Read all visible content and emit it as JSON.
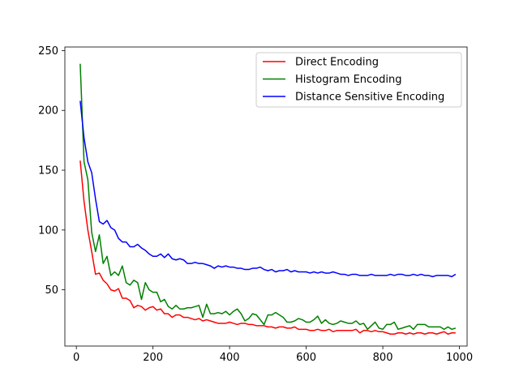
{
  "chart_data": {
    "type": "line",
    "title": "",
    "xlabel": "",
    "ylabel": "",
    "xlim": [
      -30,
      1020
    ],
    "ylim": [
      3,
      253
    ],
    "xticks": [
      0,
      200,
      400,
      600,
      800,
      1000
    ],
    "yticks": [
      50,
      100,
      150,
      200,
      250
    ],
    "xtick_labels": [
      "0",
      "200",
      "400",
      "600",
      "800",
      "1000"
    ],
    "ytick_labels": [
      "50",
      "100",
      "150",
      "200",
      "250"
    ],
    "grid": false,
    "legend_position": "top-right",
    "x": [
      10,
      20,
      30,
      40,
      50,
      60,
      70,
      80,
      90,
      100,
      110,
      120,
      130,
      140,
      150,
      160,
      170,
      180,
      190,
      200,
      210,
      220,
      230,
      240,
      250,
      260,
      270,
      280,
      290,
      300,
      310,
      320,
      330,
      340,
      350,
      360,
      370,
      380,
      390,
      400,
      410,
      420,
      430,
      440,
      450,
      460,
      470,
      480,
      490,
      500,
      510,
      520,
      530,
      540,
      550,
      560,
      570,
      580,
      590,
      600,
      610,
      620,
      630,
      640,
      650,
      660,
      670,
      680,
      690,
      700,
      710,
      720,
      730,
      740,
      750,
      760,
      770,
      780,
      790,
      800,
      810,
      820,
      830,
      840,
      850,
      860,
      870,
      880,
      890,
      900,
      910,
      920,
      930,
      940,
      950,
      960,
      970,
      980,
      990
    ],
    "series": [
      {
        "name": "Direct Encoding",
        "color": "#ff0000",
        "values": [
          158,
          124,
          100,
          82,
          63,
          64,
          58,
          55,
          50,
          49,
          51,
          43,
          43,
          41,
          35,
          37,
          36,
          33,
          35,
          36,
          33,
          34,
          30,
          30,
          27,
          29,
          29,
          27,
          27,
          26,
          25,
          26,
          24,
          25,
          24,
          23,
          22,
          22,
          22,
          23,
          22,
          21,
          22,
          22,
          21,
          21,
          20,
          20,
          20,
          19,
          19,
          18,
          19,
          19,
          18,
          18,
          19,
          17,
          17,
          17,
          16,
          16,
          17,
          16,
          16,
          17,
          15,
          16,
          16,
          16,
          16,
          16,
          17,
          14,
          16,
          16,
          15,
          16,
          15,
          15,
          14,
          13,
          13,
          14,
          14,
          13,
          14,
          13,
          14,
          14,
          13,
          14,
          14,
          13,
          14,
          15,
          13,
          14,
          14
        ]
      },
      {
        "name": "Histogram Encoding",
        "color": "#008000",
        "values": [
          239,
          157,
          142,
          98,
          82,
          96,
          72,
          78,
          62,
          65,
          62,
          70,
          56,
          54,
          58,
          56,
          42,
          56,
          50,
          48,
          48,
          40,
          42,
          36,
          34,
          37,
          34,
          34,
          35,
          35,
          36,
          37,
          27,
          38,
          30,
          30,
          31,
          30,
          32,
          29,
          32,
          34,
          30,
          24,
          26,
          30,
          29,
          25,
          21,
          29,
          29,
          31,
          29,
          27,
          23,
          23,
          24,
          26,
          25,
          23,
          23,
          25,
          28,
          22,
          25,
          22,
          21,
          22,
          24,
          23,
          22,
          22,
          24,
          21,
          22,
          17,
          20,
          23,
          18,
          17,
          21,
          21,
          23,
          17,
          18,
          19,
          20,
          17,
          21,
          21,
          21,
          19,
          19,
          19,
          19,
          17,
          19,
          17,
          18
        ]
      },
      {
        "name": "Distance Sensitive Encoding",
        "color": "#0000ff",
        "values": [
          208,
          177,
          157,
          148,
          126,
          107,
          105,
          108,
          102,
          100,
          93,
          90,
          90,
          86,
          86,
          88,
          85,
          83,
          80,
          78,
          78,
          80,
          77,
          80,
          76,
          75,
          76,
          75,
          72,
          72,
          73,
          72,
          72,
          71,
          70,
          68,
          70,
          69,
          70,
          69,
          69,
          68,
          68,
          67,
          67,
          68,
          68,
          69,
          67,
          66,
          67,
          65,
          66,
          66,
          67,
          65,
          66,
          65,
          65,
          65,
          64,
          65,
          64,
          65,
          64,
          64,
          65,
          64,
          63,
          63,
          62,
          63,
          63,
          62,
          62,
          62,
          63,
          62,
          62,
          62,
          62,
          63,
          62,
          63,
          63,
          62,
          62,
          63,
          62,
          63,
          62,
          62,
          61,
          62,
          62,
          62,
          62,
          61,
          63
        ]
      }
    ]
  }
}
